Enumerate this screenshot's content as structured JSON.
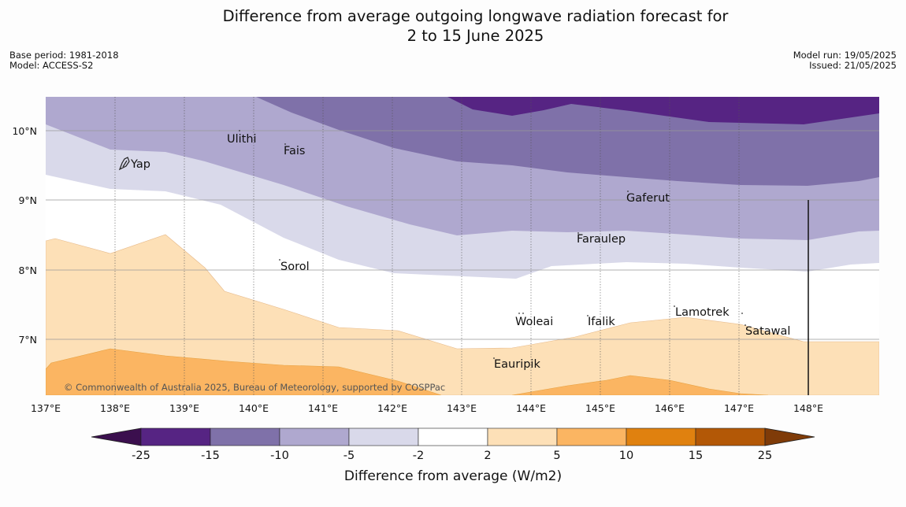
{
  "header": {
    "title_line1": "Difference from average outgoing longwave radiation forecast for",
    "title_line2": "2 to 15 June 2025",
    "base_period": "Base period: 1981-2018",
    "model": "Model: ACCESS-S2",
    "model_run": "Model run: 19/05/2025",
    "issued": "Issued: 21/05/2025"
  },
  "map": {
    "lon_ticks": [
      "137°E",
      "138°E",
      "139°E",
      "140°E",
      "141°E",
      "142°E",
      "143°E",
      "144°E",
      "145°E",
      "146°E",
      "147°E",
      "148°E"
    ],
    "lat_ticks": [
      "10°N",
      "9°N",
      "8°N",
      "7°N"
    ],
    "places": [
      {
        "name": "Yap"
      },
      {
        "name": "Ulithi"
      },
      {
        "name": "Fais"
      },
      {
        "name": "Gaferut"
      },
      {
        "name": "Faraulep"
      },
      {
        "name": "Sorol"
      },
      {
        "name": "Woleai"
      },
      {
        "name": "Ifalik"
      },
      {
        "name": "Lamotrek"
      },
      {
        "name": "Satawal"
      },
      {
        "name": "Eauripik"
      }
    ],
    "copyright": "© Commonwealth of Australia 2025, Bureau of Meteorology, supported by COSPPac"
  },
  "colorbar": {
    "ticks": [
      "-25",
      "-15",
      "-10",
      "-5",
      "-2",
      "2",
      "5",
      "10",
      "15",
      "25"
    ],
    "label": "Difference from average (W/m2)",
    "colors": [
      "#3b0f4e",
      "#562483",
      "#7f71a9",
      "#afa8cf",
      "#d9d9ea",
      "#ffffff",
      "#fde0b7",
      "#fbb562",
      "#e0810f",
      "#b35806",
      "#7f3b08"
    ]
  }
}
